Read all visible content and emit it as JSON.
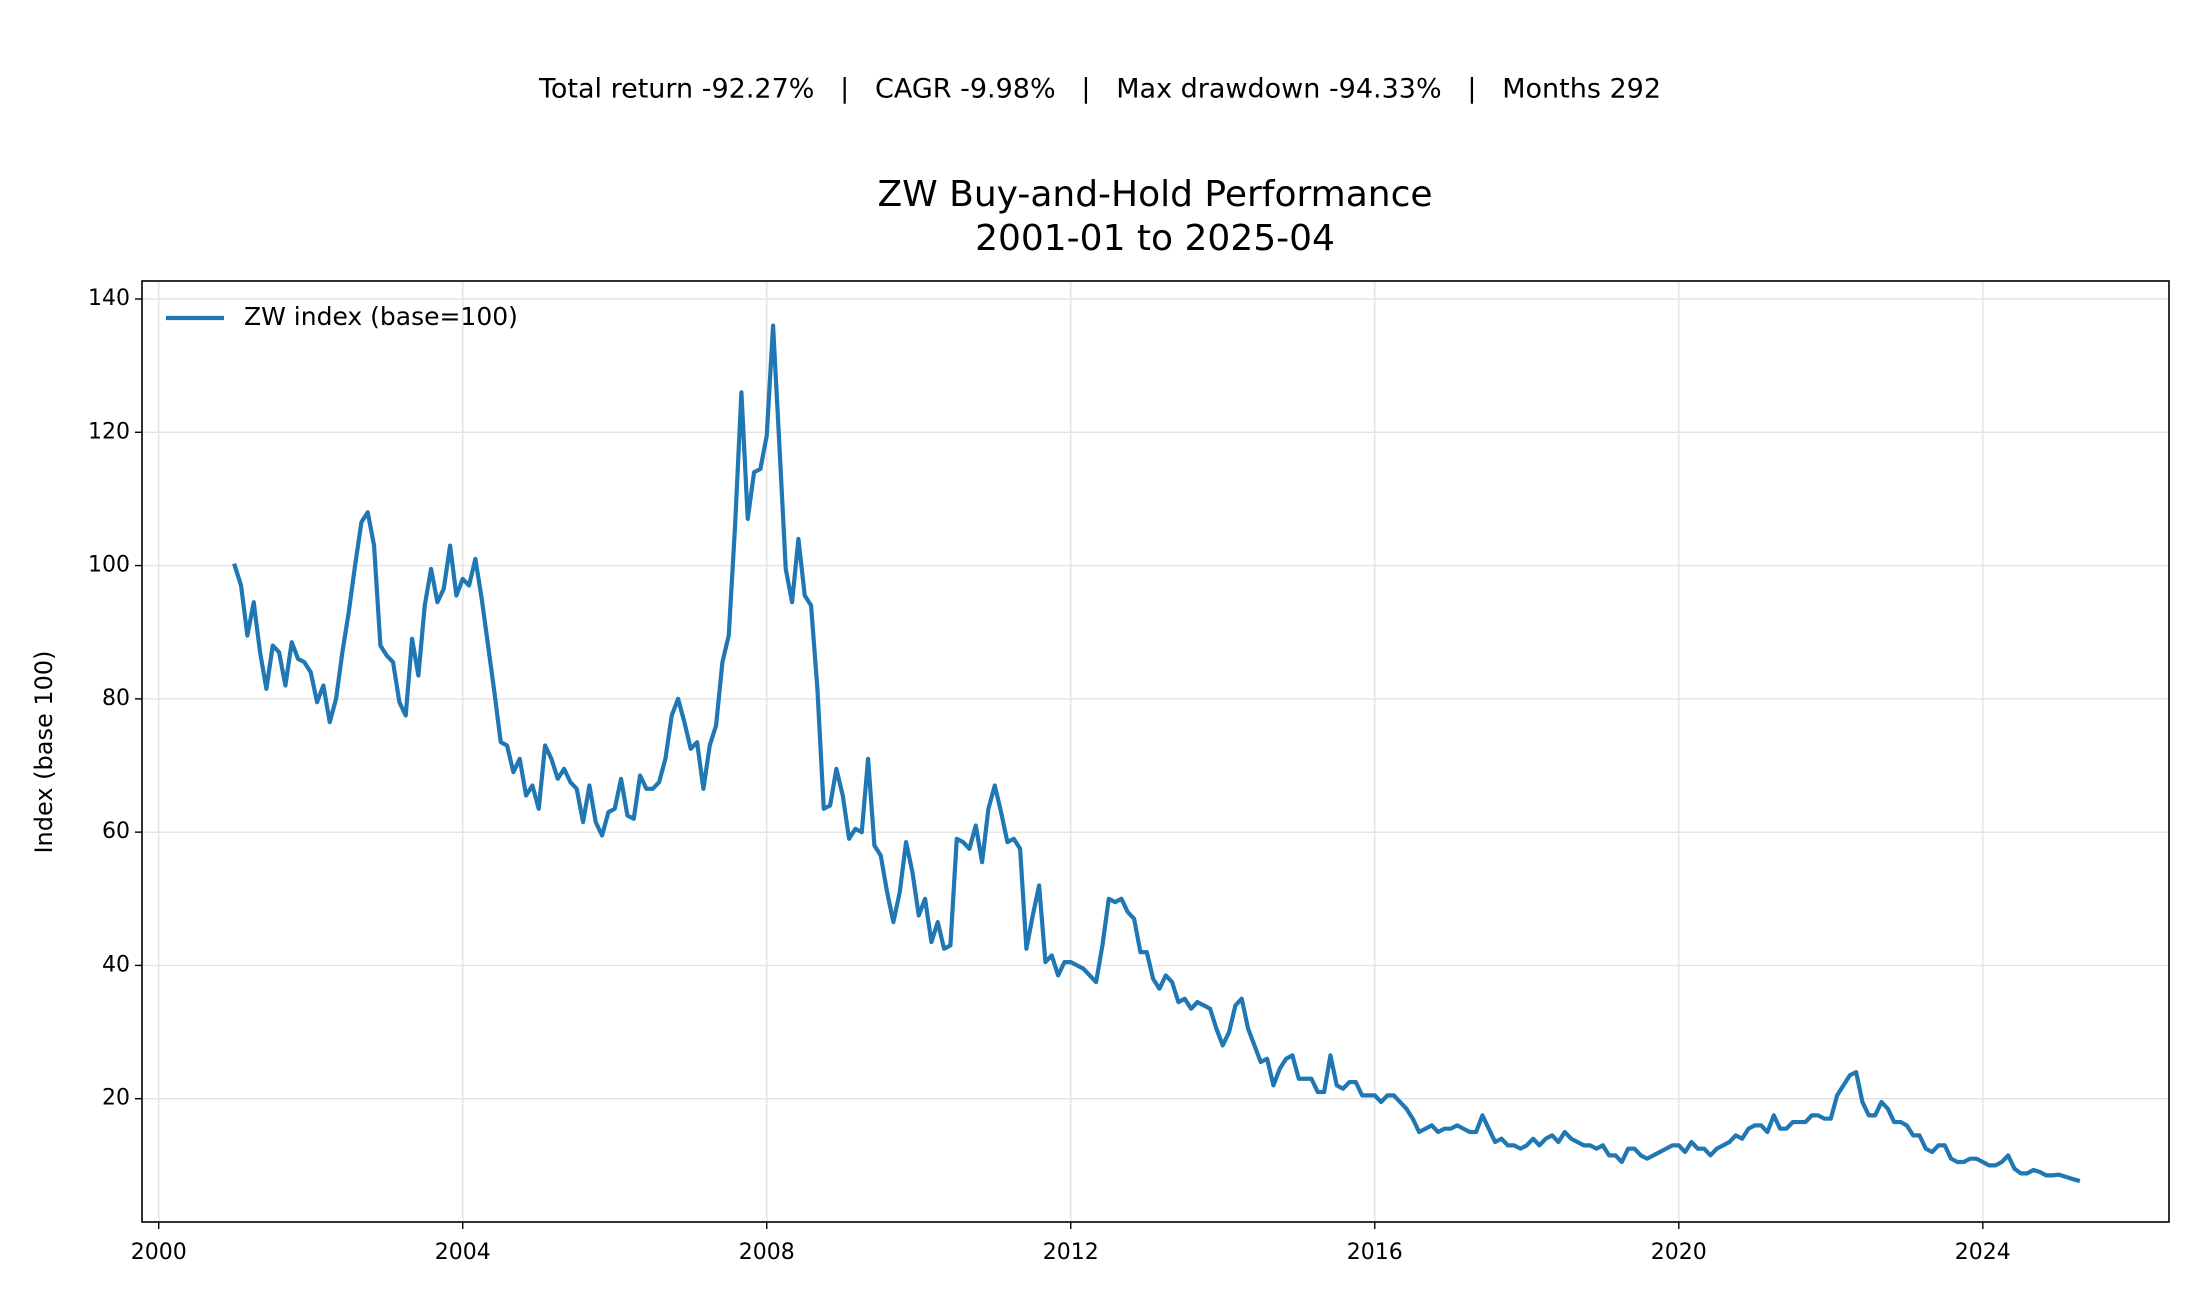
{
  "chart_data": {
    "type": "line",
    "suptitle": "Total return -92.27%   |   CAGR -9.98%   |   Max drawdown -94.33%   |   Months 292",
    "title": [
      "ZW Buy-and-Hold Performance",
      "2001-01 to 2025-04"
    ],
    "ylabel": "Index (base 100)",
    "xlim": [
      1999.78,
      2026.45
    ],
    "xticks": [
      2000,
      2004,
      2008,
      2012,
      2016,
      2020,
      2024
    ],
    "ylim": [
      1.5,
      142.7
    ],
    "yticks": [
      20,
      40,
      60,
      80,
      100,
      120,
      140
    ],
    "grid": true,
    "legend": "upper left",
    "series": [
      {
        "name": "ZW index (base=100)",
        "color": "#1f77b4",
        "x": [
          "2001-01",
          "2001-02",
          "2001-03",
          "2001-04",
          "2001-05",
          "2001-06",
          "2001-07",
          "2001-08",
          "2001-09",
          "2001-10",
          "2001-11",
          "2001-12",
          "2002-01",
          "2002-02",
          "2002-03",
          "2002-04",
          "2002-05",
          "2002-06",
          "2002-07",
          "2002-08",
          "2002-09",
          "2002-10",
          "2002-11",
          "2002-12",
          "2003-01",
          "2003-02",
          "2003-03",
          "2003-04",
          "2003-05",
          "2003-06",
          "2003-07",
          "2003-08",
          "2003-09",
          "2003-10",
          "2003-11",
          "2003-12",
          "2004-01",
          "2004-02",
          "2004-03",
          "2004-04",
          "2004-05",
          "2004-06",
          "2004-07",
          "2004-08",
          "2004-09",
          "2004-10",
          "2004-11",
          "2004-12",
          "2005-01",
          "2005-02",
          "2005-03",
          "2005-04",
          "2005-05",
          "2005-06",
          "2005-07",
          "2005-08",
          "2005-09",
          "2005-10",
          "2005-11",
          "2005-12",
          "2006-01",
          "2006-02",
          "2006-03",
          "2006-04",
          "2006-05",
          "2006-06",
          "2006-07",
          "2006-08",
          "2006-09",
          "2006-10",
          "2006-11",
          "2006-12",
          "2007-01",
          "2007-02",
          "2007-03",
          "2007-04",
          "2007-05",
          "2007-06",
          "2007-07",
          "2007-08",
          "2007-09",
          "2007-10",
          "2007-11",
          "2007-12",
          "2008-01",
          "2008-02",
          "2008-03",
          "2008-04",
          "2008-05",
          "2008-06",
          "2008-07",
          "2008-08",
          "2008-09",
          "2008-10",
          "2008-11",
          "2008-12",
          "2009-01",
          "2009-02",
          "2009-03",
          "2009-04",
          "2009-05",
          "2009-06",
          "2009-07",
          "2009-08",
          "2009-09",
          "2009-10",
          "2009-11",
          "2009-12",
          "2010-01",
          "2010-02",
          "2010-03",
          "2010-04",
          "2010-05",
          "2010-06",
          "2010-07",
          "2010-08",
          "2010-09",
          "2010-10",
          "2010-11",
          "2010-12",
          "2011-01",
          "2011-02",
          "2011-03",
          "2011-04",
          "2011-05",
          "2011-06",
          "2011-07",
          "2011-08",
          "2011-09",
          "2011-10",
          "2011-11",
          "2011-12",
          "2012-01",
          "2012-02",
          "2012-03",
          "2012-04",
          "2012-05",
          "2012-06",
          "2012-07",
          "2012-08",
          "2012-09",
          "2012-10",
          "2012-11",
          "2012-12",
          "2013-01",
          "2013-02",
          "2013-03",
          "2013-04",
          "2013-05",
          "2013-06",
          "2013-07",
          "2013-08",
          "2013-09",
          "2013-10",
          "2013-11",
          "2013-12",
          "2014-01",
          "2014-02",
          "2014-03",
          "2014-04",
          "2014-05",
          "2014-06",
          "2014-07",
          "2014-08",
          "2014-09",
          "2014-10",
          "2014-11",
          "2014-12",
          "2015-01",
          "2015-02",
          "2015-03",
          "2015-04",
          "2015-05",
          "2015-06",
          "2015-07",
          "2015-08",
          "2015-09",
          "2015-10",
          "2015-11",
          "2015-12",
          "2016-01",
          "2016-02",
          "2016-03",
          "2016-04",
          "2016-05",
          "2016-06",
          "2016-07",
          "2016-08",
          "2016-09",
          "2016-10",
          "2016-11",
          "2016-12",
          "2017-01",
          "2017-02",
          "2017-03",
          "2017-04",
          "2017-05",
          "2017-06",
          "2017-07",
          "2017-08",
          "2017-09",
          "2017-10",
          "2017-11",
          "2017-12",
          "2018-01",
          "2018-02",
          "2018-03",
          "2018-04",
          "2018-05",
          "2018-06",
          "2018-07",
          "2018-08",
          "2018-09",
          "2018-10",
          "2018-11",
          "2018-12",
          "2019-01",
          "2019-02",
          "2019-03",
          "2019-04",
          "2019-05",
          "2019-06",
          "2019-07",
          "2019-08",
          "2019-09",
          "2019-10",
          "2019-11",
          "2019-12",
          "2020-01",
          "2020-02",
          "2020-03",
          "2020-04",
          "2020-05",
          "2020-06",
          "2020-07",
          "2020-08",
          "2020-09",
          "2020-10",
          "2020-11",
          "2020-12",
          "2021-01",
          "2021-02",
          "2021-03",
          "2021-04",
          "2021-05",
          "2021-06",
          "2021-07",
          "2021-08",
          "2021-09",
          "2021-10",
          "2021-11",
          "2021-12",
          "2022-01",
          "2022-02",
          "2022-03",
          "2022-04",
          "2022-05",
          "2022-06",
          "2022-07",
          "2022-08",
          "2022-09",
          "2022-10",
          "2022-11",
          "2022-12",
          "2023-01",
          "2023-02",
          "2023-03",
          "2023-04",
          "2023-05",
          "2023-06",
          "2023-07",
          "2023-08",
          "2023-09",
          "2023-10",
          "2023-11",
          "2023-12",
          "2024-01",
          "2024-02",
          "2024-03",
          "2024-04",
          "2024-05",
          "2024-06",
          "2024-07",
          "2024-08",
          "2024-09",
          "2024-10",
          "2024-11",
          "2024-12",
          "2025-01",
          "2025-02",
          "2025-03",
          "2025-04"
        ],
        "values": [
          100,
          97,
          89.5,
          94.5,
          87,
          81.5,
          88,
          87,
          82,
          88.5,
          86,
          85.5,
          84,
          79.5,
          82,
          76.5,
          80,
          87,
          93,
          100,
          106.5,
          108,
          103,
          88,
          86.5,
          85.5,
          79.5,
          77.5,
          89,
          83.5,
          94,
          99.5,
          94.5,
          96.5,
          103,
          95.5,
          98,
          97,
          101,
          95,
          88,
          81,
          73.5,
          73,
          69,
          71,
          65.5,
          67,
          63.5,
          73,
          71,
          68,
          69.5,
          67.5,
          66.5,
          61.5,
          67,
          61.5,
          59.5,
          63,
          63.5,
          68,
          62.5,
          62,
          68.5,
          66.5,
          66.5,
          67.5,
          71,
          77.5,
          80,
          76.5,
          72.5,
          73.5,
          66.5,
          73,
          76,
          85.5,
          89.5,
          106,
          126,
          107,
          114,
          114.5,
          119.5,
          136,
          118,
          99.5,
          94.5,
          104,
          95.5,
          94,
          81.5,
          63.5,
          64,
          69.5,
          65.5,
          59,
          60.5,
          60,
          71,
          58,
          56.5,
          51,
          46.5,
          51,
          58.5,
          54,
          47.5,
          50,
          43.5,
          46.5,
          42.5,
          43,
          59,
          58.5,
          57.5,
          61,
          55.5,
          63.5,
          67,
          63,
          58.5,
          59,
          57.5,
          42.5,
          47.5,
          52,
          40.5,
          41.5,
          38.5,
          40.5,
          40.5,
          40,
          39.5,
          38.5,
          37.5,
          43,
          50,
          49.5,
          50,
          48,
          47,
          42,
          42,
          38,
          36.5,
          38.5,
          37.5,
          34.5,
          35,
          33.5,
          34.5,
          34,
          33.5,
          30.5,
          28,
          30,
          34,
          35,
          30.5,
          28,
          25.5,
          26,
          22,
          24.5,
          26,
          26.5,
          23,
          23,
          23,
          21,
          21,
          26.5,
          22,
          21.5,
          22.5,
          22.5,
          20.5,
          20.5,
          20.5,
          19.5,
          20.5,
          20.5,
          19.5,
          18.5,
          17,
          15,
          15.5,
          16,
          15,
          15.5,
          15.5,
          16,
          15.5,
          15,
          15,
          17.5,
          15.5,
          13.5,
          14,
          13,
          13,
          12.5,
          13,
          14,
          13,
          14,
          14.5,
          13.5,
          15,
          14,
          13.5,
          13,
          13,
          12.5,
          13,
          11.5,
          11.5,
          10.5,
          12.5,
          12.5,
          11.5,
          11,
          11.5,
          12,
          12.5,
          13,
          13,
          12,
          13.5,
          12.5,
          12.5,
          11.5,
          12.5,
          13,
          13.5,
          14.5,
          14,
          15.5,
          16,
          16,
          15,
          17.5,
          15.5,
          15.5,
          16.5,
          16.5,
          16.5,
          17.5,
          17.5,
          17,
          17,
          20.5,
          22,
          23.5,
          24,
          19.5,
          17.5,
          17.5,
          19.5,
          18.5,
          16.5,
          16.5,
          16,
          14.5,
          14.5,
          12.5,
          12,
          13,
          13,
          11,
          10.5,
          10.5,
          11,
          11,
          10.5,
          10,
          10,
          10.5,
          11.5,
          9.5,
          8.8,
          8.8,
          9.3,
          9,
          8.5,
          8.5,
          8.6,
          8.3,
          8,
          7.73
        ]
      }
    ]
  }
}
